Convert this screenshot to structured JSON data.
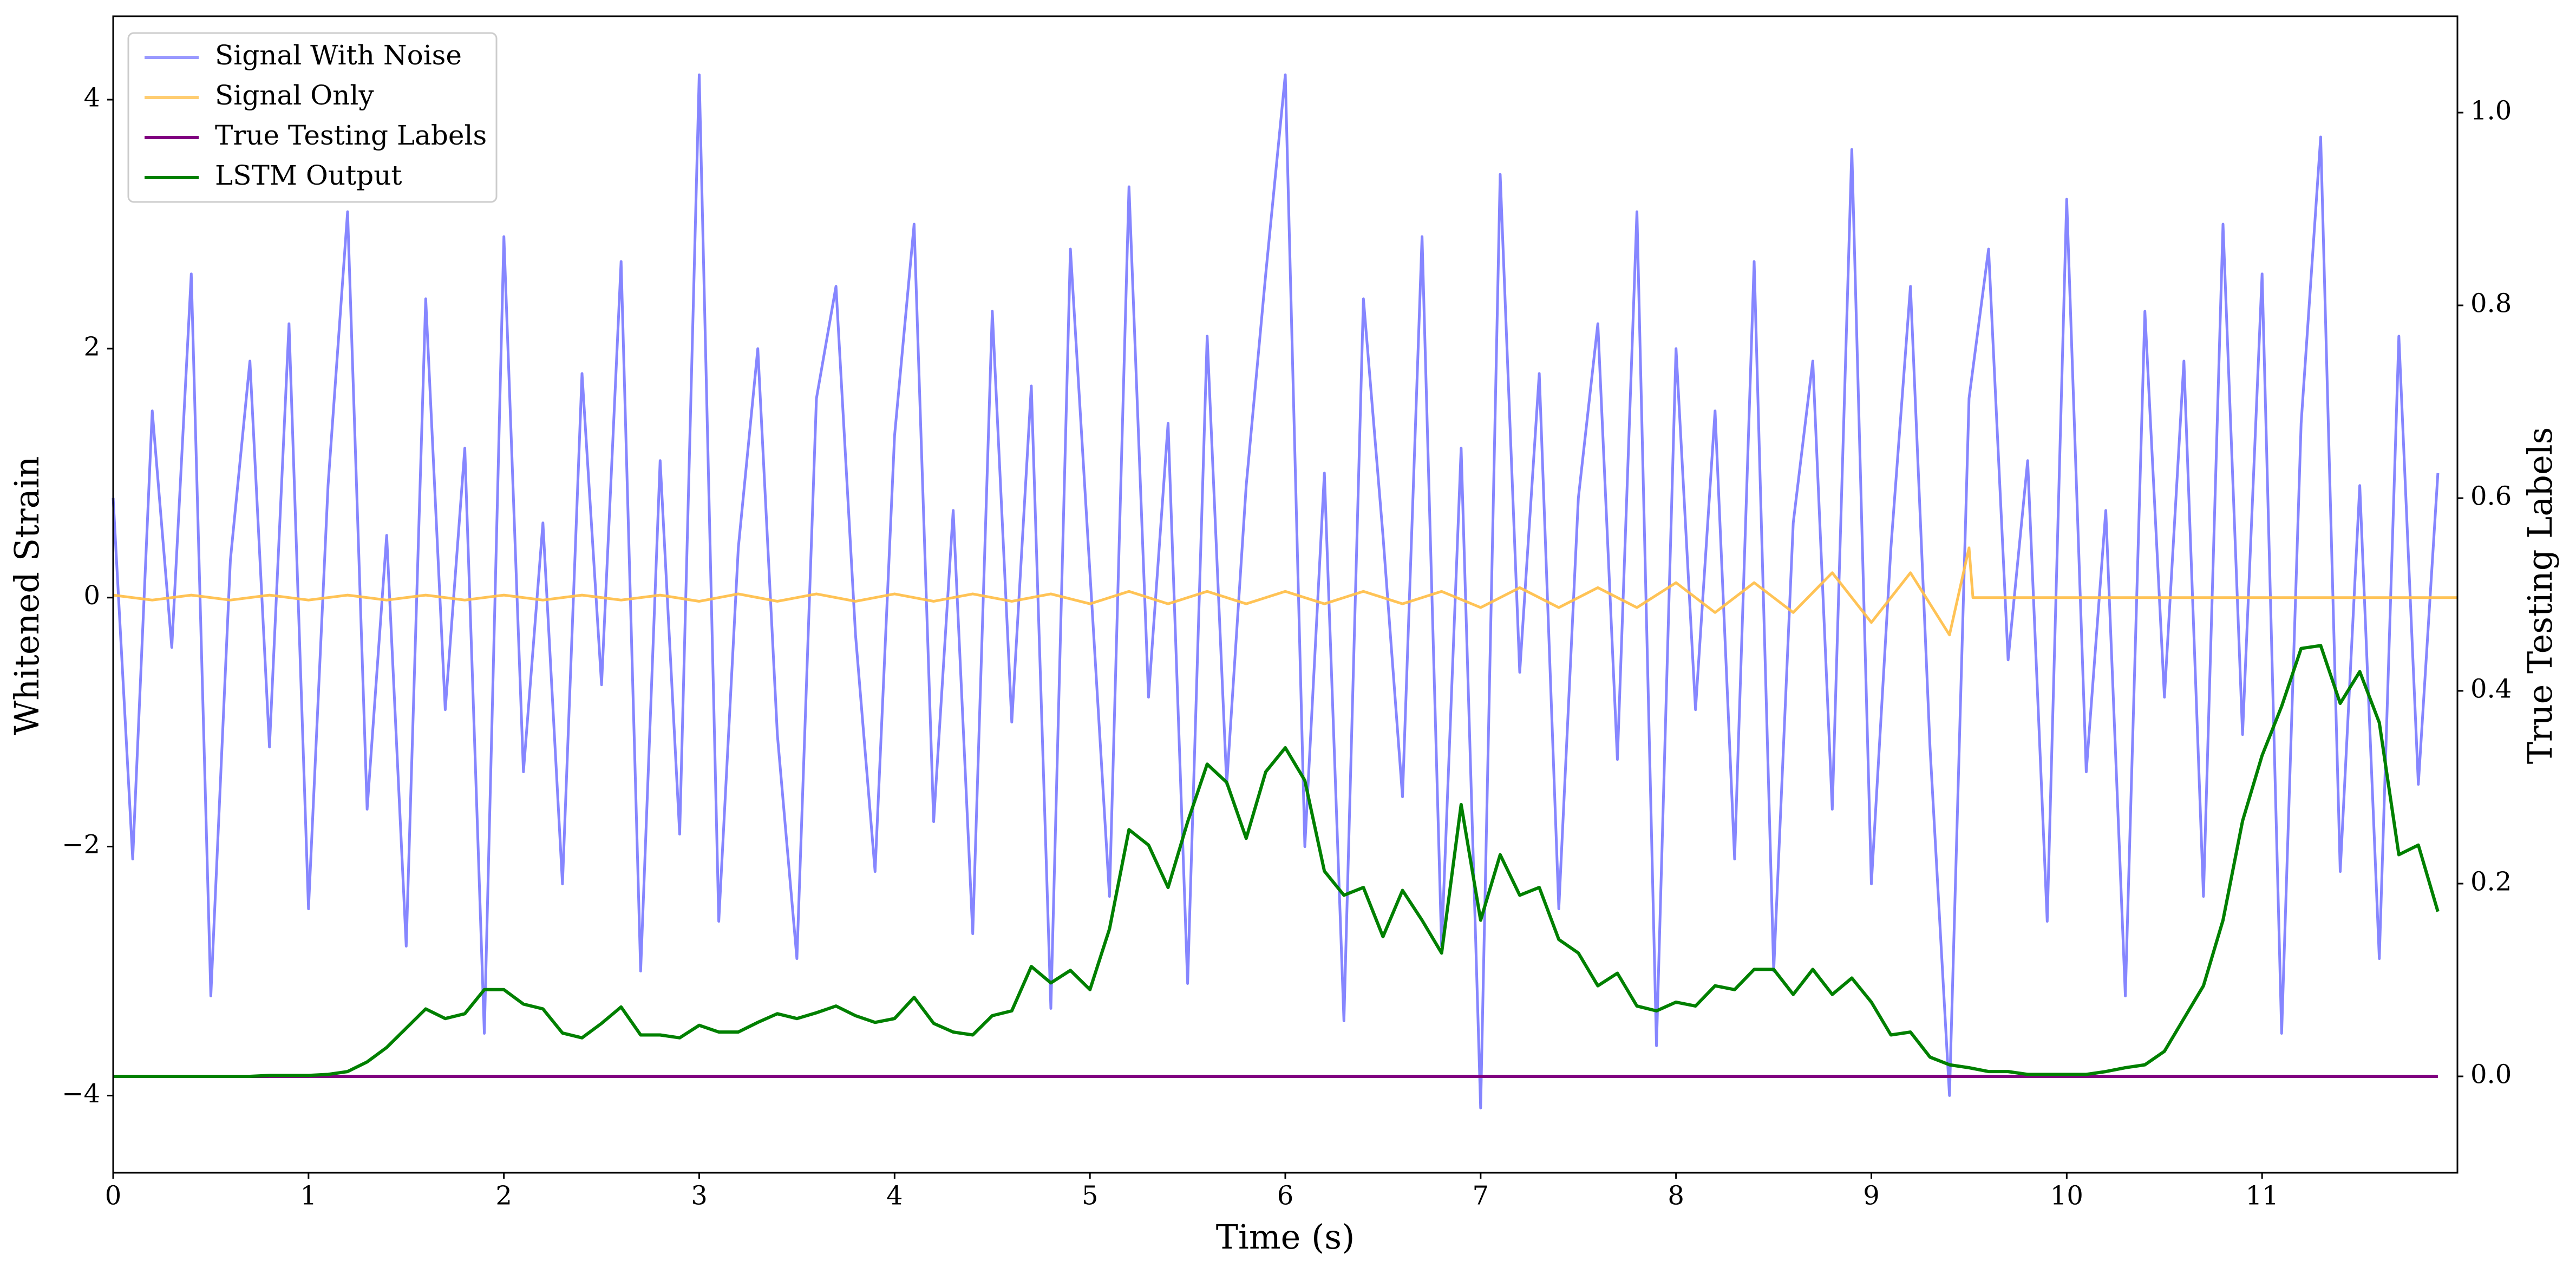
{
  "chart_data": {
    "type": "line",
    "xlabel": "Time (s)",
    "ylabel": "Whitened Strain",
    "y2label": "True Testing Labels",
    "xlim": [
      0,
      12
    ],
    "ylim": [
      -4.62,
      4.67
    ],
    "y2lim": [
      -0.1,
      1.1
    ],
    "xticks": [
      0,
      1,
      2,
      3,
      4,
      5,
      6,
      7,
      8,
      9,
      10,
      11
    ],
    "yticks": [
      {
        "value": -4,
        "label": "−4"
      },
      {
        "value": -2,
        "label": "−2"
      },
      0,
      2,
      4
    ],
    "y2ticks": [
      {
        "value": 0,
        "label": "0.0"
      },
      0.2,
      0.4,
      0.6,
      0.8,
      {
        "value": 1,
        "label": "1.0"
      }
    ],
    "legend": "upper left",
    "x": [
      0.0,
      0.1,
      0.2,
      0.3,
      0.4,
      0.5,
      0.6,
      0.7,
      0.8,
      0.9,
      1.0,
      1.1,
      1.2,
      1.3,
      1.4,
      1.5,
      1.6,
      1.7,
      1.8,
      1.9,
      2.0,
      2.1,
      2.2,
      2.3,
      2.4,
      2.5,
      2.6,
      2.7,
      2.8,
      2.9,
      3.0,
      3.1,
      3.2,
      3.3,
      3.4,
      3.5,
      3.6,
      3.7,
      3.8,
      3.9,
      4.0,
      4.1,
      4.2,
      4.3,
      4.4,
      4.5,
      4.6,
      4.7,
      4.8,
      4.9,
      5.0,
      5.1,
      5.2,
      5.3,
      5.4,
      5.5,
      5.6,
      5.7,
      5.8,
      5.9,
      6.0,
      6.1,
      6.2,
      6.3,
      6.4,
      6.5,
      6.6,
      6.7,
      6.8,
      6.9,
      7.0,
      7.1,
      7.2,
      7.3,
      7.4,
      7.5,
      7.6,
      7.7,
      7.8,
      7.9,
      8.0,
      8.1,
      8.2,
      8.3,
      8.4,
      8.5,
      8.6,
      8.7,
      8.8,
      8.9,
      9.0,
      9.1,
      9.2,
      9.3,
      9.4,
      9.5,
      9.6,
      9.7,
      9.8,
      9.9,
      10.0,
      10.1,
      10.2,
      10.3,
      10.4,
      10.5,
      10.6,
      10.7,
      10.8,
      10.9,
      11.0,
      11.1,
      11.2,
      11.3,
      11.4,
      11.5,
      11.6,
      11.7,
      11.8,
      11.9
    ],
    "series": [
      {
        "name": "Signal With Noise",
        "color": "#7f7fff",
        "axis": "y",
        "values": [
          0.8,
          -2.1,
          1.5,
          -0.4,
          2.6,
          -3.2,
          0.3,
          1.9,
          -1.2,
          2.2,
          -2.5,
          0.9,
          3.1,
          -1.7,
          0.5,
          -2.8,
          2.4,
          -0.9,
          1.2,
          -3.5,
          2.9,
          -1.4,
          0.6,
          -2.3,
          1.8,
          -0.7,
          2.7,
          -3.0,
          1.1,
          -1.9,
          4.2,
          -2.6,
          0.4,
          2.0,
          -1.1,
          -2.9,
          1.6,
          2.5,
          -0.3,
          -2.2,
          1.3,
          3.0,
          -1.8,
          0.7,
          -2.7,
          2.3,
          -1.0,
          1.7,
          -3.3,
          2.8,
          0.2,
          -2.4,
          3.3,
          -0.8,
          1.4,
          -3.1,
          2.1,
          -1.5,
          0.9,
          2.6,
          4.2,
          -2.0,
          1.0,
          -3.4,
          2.4,
          0.5,
          -1.6,
          2.9,
          -2.8,
          1.2,
          -4.1,
          3.4,
          -0.6,
          1.8,
          -2.5,
          0.8,
          2.2,
          -1.3,
          3.1,
          -3.6,
          2.0,
          -0.9,
          1.5,
          -2.1,
          2.7,
          -3.0,
          0.6,
          1.9,
          -1.7,
          3.6,
          -2.3,
          0.4,
          2.5,
          -1.2,
          -4.0,
          1.6,
          2.8,
          -0.5,
          1.1,
          -2.6,
          3.2,
          -1.4,
          0.7,
          -3.2,
          2.3,
          -0.8,
          1.9,
          -2.4,
          3.0,
          -1.1,
          2.6,
          -3.5,
          1.4,
          3.7,
          -2.2,
          0.9,
          -2.9,
          2.1,
          -1.5,
          1.0
        ]
      },
      {
        "name": "Signal Only",
        "color": "#ffc04d",
        "axis": "y",
        "x": [
          0,
          0.2,
          0.4,
          0.6,
          0.8,
          1.0,
          1.2,
          1.4,
          1.6,
          1.8,
          2.0,
          2.2,
          2.4,
          2.6,
          2.8,
          3.0,
          3.2,
          3.4,
          3.6,
          3.8,
          4.0,
          4.2,
          4.4,
          4.6,
          4.8,
          5.0,
          5.2,
          5.4,
          5.6,
          5.8,
          6.0,
          6.2,
          6.4,
          6.6,
          6.8,
          7.0,
          7.2,
          7.4,
          7.6,
          7.8,
          8.0,
          8.2,
          8.4,
          8.6,
          8.8,
          9.0,
          9.2,
          9.4,
          9.5,
          9.52,
          12
        ],
        "values": [
          0.02,
          -0.02,
          0.02,
          -0.02,
          0.02,
          -0.02,
          0.02,
          -0.02,
          0.02,
          -0.02,
          0.02,
          -0.02,
          0.02,
          -0.02,
          0.02,
          -0.03,
          0.03,
          -0.03,
          0.03,
          -0.03,
          0.03,
          -0.03,
          0.03,
          -0.03,
          0.03,
          -0.05,
          0.05,
          -0.05,
          0.05,
          -0.05,
          0.05,
          -0.05,
          0.05,
          -0.05,
          0.05,
          -0.08,
          0.08,
          -0.08,
          0.08,
          -0.08,
          0.12,
          -0.12,
          0.12,
          -0.12,
          0.2,
          -0.2,
          0.2,
          -0.3,
          0.4,
          0,
          0
        ]
      },
      {
        "name": "True Testing Labels",
        "color": "#800080",
        "axis": "y2",
        "x": [
          0,
          11.9
        ],
        "values": [
          0,
          0
        ]
      },
      {
        "name": "LSTM Output",
        "color": "#008000",
        "axis": "y2",
        "values": [
          0,
          0,
          0,
          0,
          0,
          0,
          0,
          0,
          0.001,
          0.001,
          0.001,
          0.002,
          0.005,
          0.015,
          0.03,
          0.05,
          0.07,
          0.06,
          0.065,
          0.09,
          0.09,
          0.075,
          0.07,
          0.045,
          0.04,
          0.055,
          0.072,
          0.043,
          0.043,
          0.04,
          0.053,
          0.046,
          0.046,
          0.056,
          0.065,
          0.06,
          0.066,
          0.073,
          0.063,
          0.056,
          0.06,
          0.082,
          0.055,
          0.046,
          0.043,
          0.063,
          0.068,
          0.114,
          0.097,
          0.11,
          0.09,
          0.153,
          0.256,
          0.24,
          0.196,
          0.264,
          0.324,
          0.305,
          0.247,
          0.316,
          0.341,
          0.307,
          0.213,
          0.188,
          0.196,
          0.145,
          0.193,
          0.162,
          0.128,
          0.282,
          0.162,
          0.23,
          0.188,
          0.196,
          0.142,
          0.128,
          0.094,
          0.107,
          0.073,
          0.068,
          0.077,
          0.073,
          0.094,
          0.09,
          0.111,
          0.111,
          0.085,
          0.111,
          0.085,
          0.102,
          0.077,
          0.043,
          0.046,
          0.02,
          0.012,
          0.009,
          0.005,
          0.005,
          0.002,
          0.002,
          0.002,
          0.002,
          0.005,
          0.009,
          0.012,
          0.026,
          0.06,
          0.094,
          0.162,
          0.265,
          0.333,
          0.384,
          0.444,
          0.447,
          0.387,
          0.42,
          0.367,
          0.23,
          0.24,
          0.171
        ]
      }
    ]
  }
}
